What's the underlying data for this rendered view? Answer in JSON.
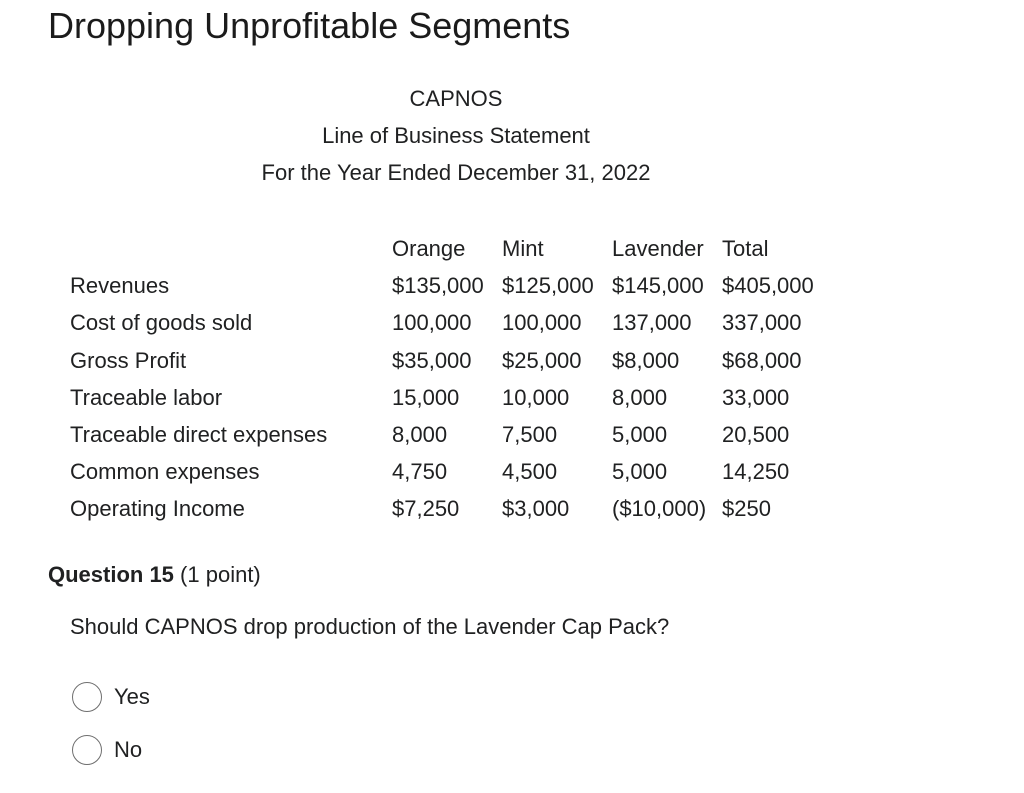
{
  "page": {
    "title": "Dropping Unprofitable Segments"
  },
  "statement": {
    "company": "CAPNOS",
    "name": "Line of Business Statement",
    "period": "For the Year Ended December 31, 2022",
    "columns": [
      "Orange",
      "Mint",
      "Lavender",
      "Total"
    ],
    "rows": [
      {
        "label": "Revenues",
        "values": [
          "$135,000",
          "$125,000",
          "$145,000",
          "$405,000"
        ]
      },
      {
        "label": "Cost of goods sold",
        "values": [
          "100,000",
          "100,000",
          "137,000",
          "337,000"
        ]
      },
      {
        "label": "Gross Profit",
        "values": [
          "$35,000",
          "$25,000",
          "$8,000",
          "$68,000"
        ]
      },
      {
        "label": "Traceable labor",
        "values": [
          "15,000",
          "10,000",
          "8,000",
          "33,000"
        ]
      },
      {
        "label": "Traceable direct expenses",
        "values": [
          "8,000",
          "7,500",
          "5,000",
          "20,500"
        ]
      },
      {
        "label": "Common expenses",
        "values": [
          "4,750",
          "4,500",
          "5,000",
          "14,250"
        ]
      },
      {
        "label": "Operating Income",
        "values": [
          "$7,250",
          "$3,000",
          "($10,000)",
          "$250"
        ]
      }
    ]
  },
  "question": {
    "number_label": "Question 15",
    "points": "(1 point)",
    "text": "Should CAPNOS drop production of the Lavender Cap Pack?",
    "options": [
      "Yes",
      "No"
    ],
    "selected": null
  }
}
